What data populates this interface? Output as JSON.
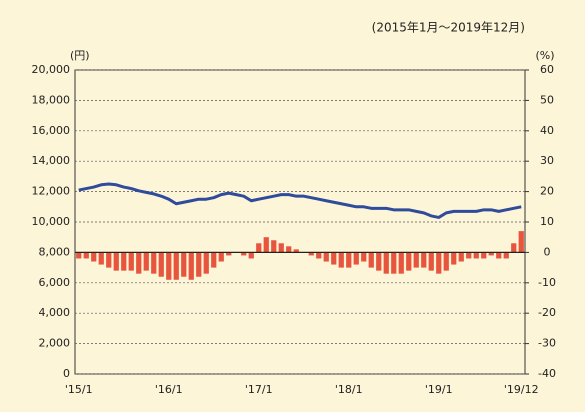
{
  "chart_data": {
    "type": "bar-line",
    "title": "(2015年1月～2019年12月)",
    "y_label": "(円)",
    "y2_label": "(%)",
    "categories": [
      "'15/1",
      null,
      null,
      null,
      null,
      null,
      null,
      null,
      null,
      null,
      null,
      null,
      "'16/1",
      null,
      null,
      null,
      null,
      null,
      null,
      null,
      null,
      null,
      null,
      null,
      "'17/1",
      null,
      null,
      null,
      null,
      null,
      null,
      null,
      null,
      null,
      null,
      null,
      "'18/1",
      null,
      null,
      null,
      null,
      null,
      null,
      null,
      null,
      null,
      null,
      null,
      "'19/1",
      null,
      null,
      null,
      null,
      null,
      null,
      null,
      null,
      null,
      null,
      "'19/12"
    ],
    "series": [
      {
        "kind": "line",
        "color": "#2f4b9c",
        "values": [
          12100,
          12200,
          12300,
          12450,
          12500,
          12450,
          12300,
          12200,
          12050,
          11950,
          11850,
          11700,
          11500,
          11200,
          11300,
          11400,
          11500,
          11500,
          11600,
          11800,
          11900,
          11800,
          11700,
          11400,
          11500,
          11600,
          11700,
          11800,
          11800,
          11700,
          11700,
          11600,
          11500,
          11400,
          11300,
          11200,
          11100,
          11000,
          11000,
          10900,
          10900,
          10900,
          10800,
          10800,
          10800,
          10700,
          10600,
          10400,
          10300,
          10600,
          10700,
          10700,
          10700,
          10700,
          10800,
          10800,
          10700,
          10800,
          10900,
          11000
        ]
      },
      {
        "kind": "bar",
        "axis": "y2",
        "color": "#e8553e",
        "values": [
          -2,
          -2,
          -3,
          -4,
          -5,
          -6,
          -6,
          -6,
          -7,
          -6,
          -7,
          -8,
          -9,
          -9,
          -8,
          -9,
          -8,
          -7,
          -5,
          -3,
          -1,
          0,
          -1,
          -2,
          3,
          5,
          4,
          3,
          2,
          1,
          0,
          -1,
          -2,
          -3,
          -4,
          -5,
          -5,
          -4,
          -3,
          -5,
          -6,
          -7,
          -7,
          -7,
          -6,
          -5,
          -5,
          -6,
          -7,
          -6,
          -4,
          -3,
          -2,
          -2,
          -2,
          -1,
          -2,
          -2,
          3,
          7
        ]
      }
    ],
    "ylim": [
      0,
      20000
    ],
    "yticks": [
      0,
      {
        "value": 2000,
        "label": "2,000"
      },
      {
        "value": 4000,
        "label": "4,000"
      },
      {
        "value": 6000,
        "label": "6,000"
      },
      {
        "value": 8000,
        "label": "8,000"
      },
      {
        "value": 10000,
        "label": "10,000"
      },
      {
        "value": 12000,
        "label": "12,000"
      },
      {
        "value": 14000,
        "label": "14,000"
      },
      {
        "value": 16000,
        "label": "16,000"
      },
      {
        "value": 18000,
        "label": "18,000"
      },
      {
        "value": 20000,
        "label": "20,000"
      }
    ],
    "y2lim": [
      -40,
      60
    ],
    "y2ticks": [
      -40,
      -30,
      -20,
      -10,
      0,
      10,
      20,
      30,
      40,
      50,
      60
    ],
    "grid": true
  }
}
